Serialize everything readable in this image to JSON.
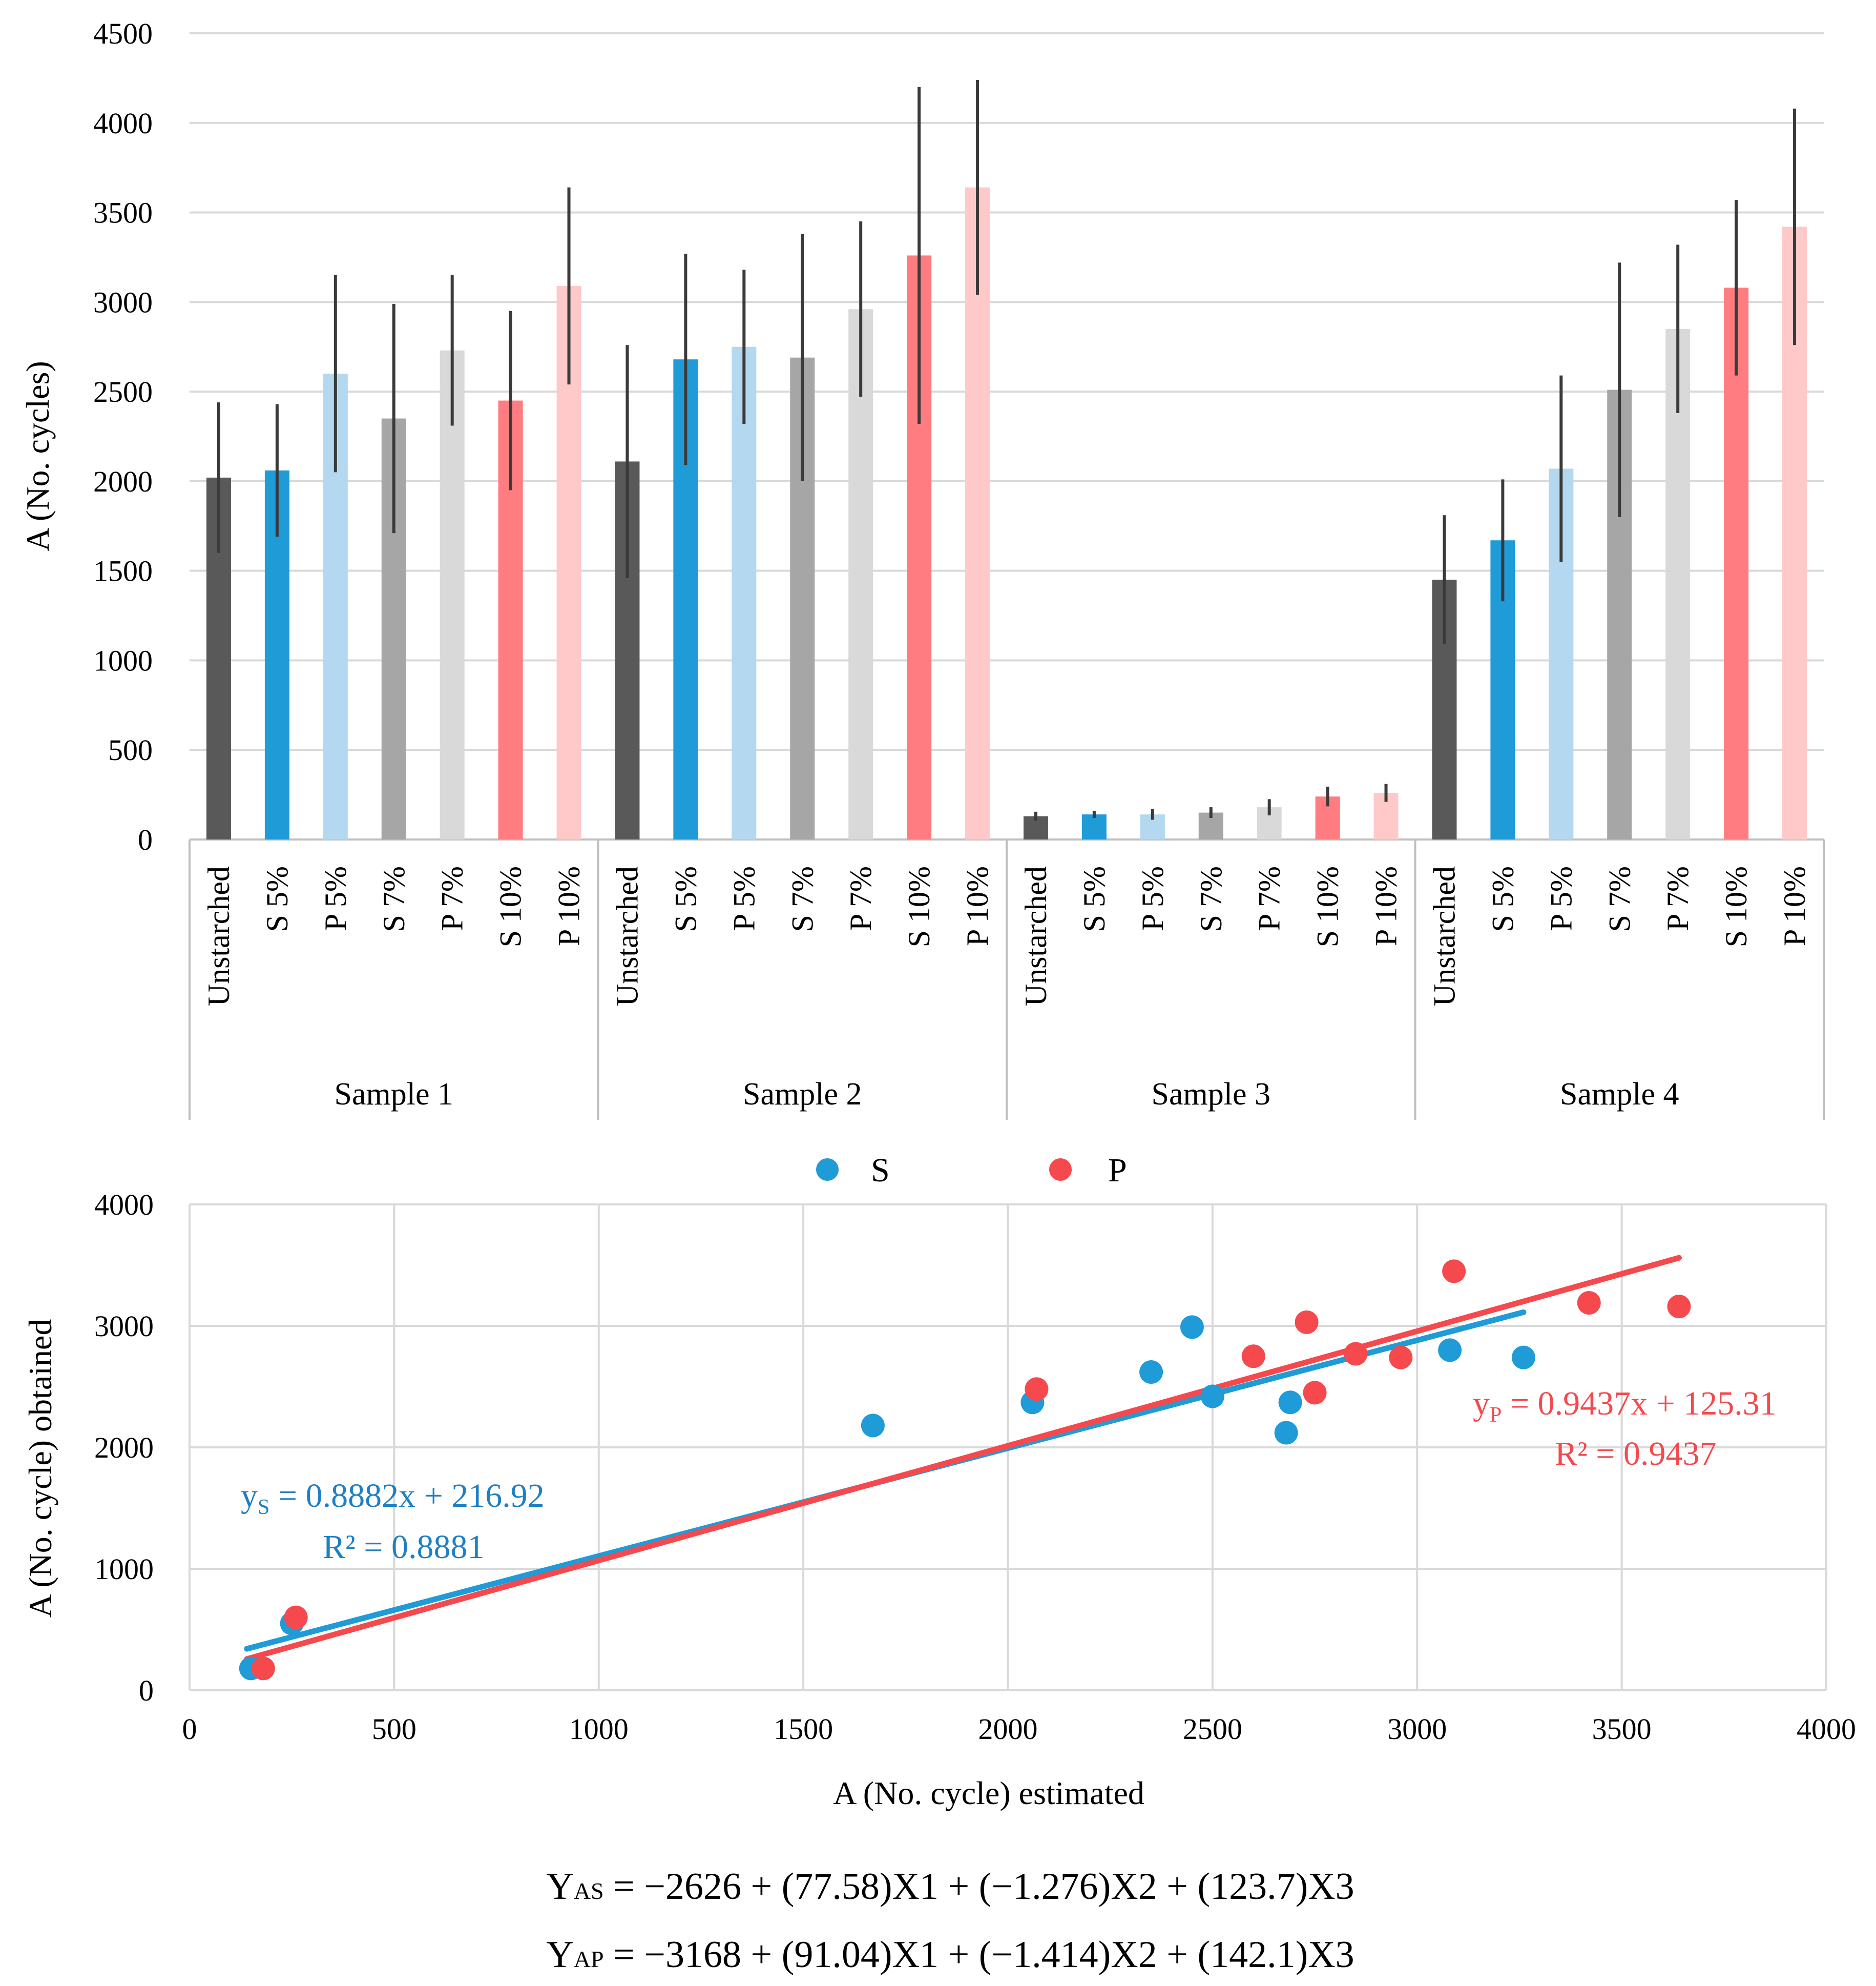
{
  "chart_data": [
    {
      "type": "bar",
      "title": "",
      "xlabel": "",
      "ylabel": "A (No. cycles)",
      "ylim": [
        0,
        4500
      ],
      "yticks": [
        0,
        500,
        1000,
        1500,
        2000,
        2500,
        3000,
        3500,
        4000,
        4500
      ],
      "grid": true,
      "groups": [
        "Sample 1",
        "Sample 2",
        "Sample 3",
        "Sample 4"
      ],
      "categories": [
        "Unstarched",
        "S 5%",
        "P 5%",
        "S 7%",
        "P 7%",
        "S 10%",
        "P 10%"
      ],
      "category_colors": [
        "#595959",
        "#1f9bd7",
        "#b4d8ef",
        "#a6a6a6",
        "#d9d9d9",
        "#ff7c80",
        "#ffc9ca"
      ],
      "values": [
        [
          2020,
          2060,
          2600,
          2350,
          2730,
          2450,
          3090
        ],
        [
          2110,
          2680,
          2750,
          2690,
          2960,
          3260,
          3640
        ],
        [
          130,
          140,
          140,
          150,
          180,
          240,
          260
        ],
        [
          1450,
          1670,
          2070,
          2510,
          2850,
          3080,
          3420
        ]
      ],
      "errors": [
        [
          420,
          370,
          550,
          640,
          420,
          500,
          550
        ],
        [
          650,
          590,
          430,
          690,
          490,
          940,
          600
        ],
        [
          25,
          20,
          30,
          30,
          45,
          55,
          50
        ],
        [
          360,
          340,
          520,
          710,
          470,
          490,
          660
        ]
      ]
    },
    {
      "type": "scatter",
      "xlabel": "A (No. cycle) estimated",
      "ylabel": "A (No. cycle) obtained",
      "xlim": [
        0,
        4000
      ],
      "ylim": [
        0,
        4000
      ],
      "xticks": [
        0,
        500,
        1000,
        1500,
        2000,
        2500,
        3000,
        3500,
        4000
      ],
      "yticks": [
        0,
        1000,
        2000,
        3000,
        4000
      ],
      "grid": true,
      "legend_position": "top",
      "series": [
        {
          "name": "S",
          "color": "#1f9bd7",
          "points": [
            [
              150,
              180
            ],
            [
              250,
              550
            ],
            [
              1670,
              2180
            ],
            [
              2060,
              2370
            ],
            [
              2350,
              2620
            ],
            [
              2450,
              2990
            ],
            [
              2500,
              2420
            ],
            [
              2680,
              2120
            ],
            [
              2690,
              2370
            ],
            [
              3080,
              2800
            ],
            [
              3260,
              2740
            ]
          ],
          "trendline": {
            "slope": 0.8882,
            "intercept": 216.92,
            "x_range": [
              140,
              3260
            ]
          },
          "equation": {
            "prefix": "y",
            "sub": "S",
            "rest": " = 0.8882x + 216.92",
            "r2": "R² = 0.8881"
          }
        },
        {
          "name": "P",
          "color": "#f5494d",
          "points": [
            [
              180,
              180
            ],
            [
              260,
              600
            ],
            [
              2070,
              2480
            ],
            [
              2600,
              2750
            ],
            [
              2730,
              3030
            ],
            [
              2750,
              2450
            ],
            [
              2850,
              2770
            ],
            [
              2960,
              2740
            ],
            [
              3090,
              3450
            ],
            [
              3420,
              3190
            ],
            [
              3640,
              3160
            ]
          ],
          "trendline": {
            "slope": 0.9437,
            "intercept": 125.31,
            "x_range": [
              140,
              3640
            ]
          },
          "equation": {
            "prefix": "y",
            "sub": "P",
            "rest": " = 0.9437x + 125.31",
            "r2": "R² = 0.9437"
          }
        }
      ]
    }
  ],
  "formulas": [
    {
      "lead": "Y",
      "sub": "AS",
      "rest": " = −2626 + (77.58)X1 + (−1.276)X2 + (123.7)X3"
    },
    {
      "lead": "Y",
      "sub": "AP",
      "rest": " = −3168 + (91.04)X1 + (−1.414)X2 + (142.1)X3"
    }
  ]
}
